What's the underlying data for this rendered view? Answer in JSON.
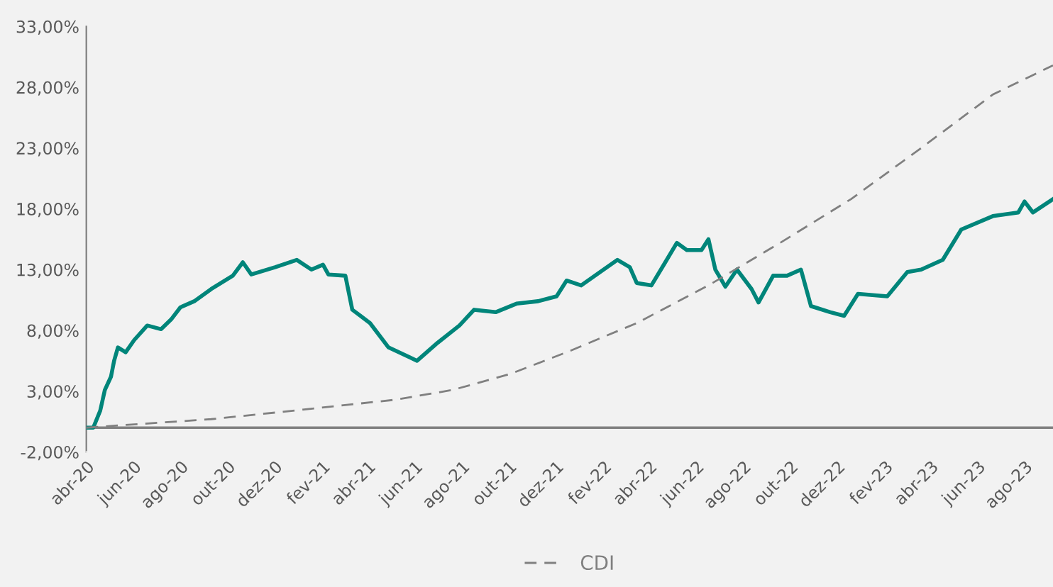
{
  "chart_data": {
    "type": "line",
    "xlim": [
      "2020-04-01",
      "2023-09-07"
    ],
    "ylim": [
      -2,
      33
    ],
    "yticks": [
      {
        "value": -2,
        "label": "-2,00%"
      },
      {
        "value": 3,
        "label": "3,00%"
      },
      {
        "value": 8,
        "label": "8,00%"
      },
      {
        "value": 13,
        "label": "13,00%"
      },
      {
        "value": 18,
        "label": "18,00%"
      },
      {
        "value": 23,
        "label": "23,00%"
      },
      {
        "value": 28,
        "label": "28,00%"
      },
      {
        "value": 33,
        "label": "33,00%"
      }
    ],
    "xticks": [
      {
        "value": "2020-04-01",
        "label": "abr-20"
      },
      {
        "value": "2020-06-01",
        "label": "jun-20"
      },
      {
        "value": "2020-08-01",
        "label": "ago-20"
      },
      {
        "value": "2020-10-01",
        "label": "out-20"
      },
      {
        "value": "2020-12-01",
        "label": "dez-20"
      },
      {
        "value": "2021-02-01",
        "label": "fev-21"
      },
      {
        "value": "2021-04-01",
        "label": "abr-21"
      },
      {
        "value": "2021-06-01",
        "label": "jun-21"
      },
      {
        "value": "2021-08-01",
        "label": "ago-21"
      },
      {
        "value": "2021-10-01",
        "label": "out-21"
      },
      {
        "value": "2021-12-01",
        "label": "dez-21"
      },
      {
        "value": "2022-02-01",
        "label": "fev-22"
      },
      {
        "value": "2022-04-01",
        "label": "abr-22"
      },
      {
        "value": "2022-06-01",
        "label": "jun-22"
      },
      {
        "value": "2022-08-01",
        "label": "ago-22"
      },
      {
        "value": "2022-10-01",
        "label": "out-22"
      },
      {
        "value": "2022-12-01",
        "label": "dez-22"
      },
      {
        "value": "2023-02-01",
        "label": "fev-23"
      },
      {
        "value": "2023-04-01",
        "label": "abr-23"
      },
      {
        "value": "2023-06-01",
        "label": "jun-23"
      },
      {
        "value": "2023-08-01",
        "label": "ago-23"
      }
    ],
    "grid": false,
    "legend": "bottom",
    "ref_lines": [
      {
        "axis": "y",
        "value": 0,
        "color": "#808080",
        "line_style": "solid"
      }
    ],
    "series": [
      {
        "color": "#00857a",
        "line_style": "solid",
        "x": [
          "2020-04-01",
          "2020-04-10",
          "2020-04-19",
          "2020-04-25",
          "2020-05-03",
          "2020-05-07",
          "2020-05-12",
          "2020-05-22",
          "2020-06-02",
          "2020-06-19",
          "2020-07-07",
          "2020-07-20",
          "2020-08-01",
          "2020-08-19",
          "2020-09-10",
          "2020-10-08",
          "2020-10-21",
          "2020-11-01",
          "2020-12-02",
          "2020-12-30",
          "2021-01-18",
          "2021-02-02",
          "2021-02-09",
          "2021-03-03",
          "2021-03-12",
          "2021-04-04",
          "2021-04-28",
          "2021-05-25",
          "2021-06-04",
          "2021-07-01",
          "2021-07-29",
          "2021-08-17",
          "2021-09-14",
          "2021-10-11",
          "2021-11-08",
          "2021-12-02",
          "2021-12-15",
          "2022-01-03",
          "2022-02-01",
          "2022-02-19",
          "2022-03-07",
          "2022-03-16",
          "2022-04-04",
          "2022-04-22",
          "2022-05-07",
          "2022-05-20",
          "2022-06-08",
          "2022-06-17",
          "2022-06-26",
          "2022-07-09",
          "2022-07-24",
          "2022-08-12",
          "2022-08-21",
          "2022-09-09",
          "2022-09-27",
          "2022-10-15",
          "2022-10-28",
          "2022-11-22",
          "2022-12-10",
          "2022-12-28",
          "2023-02-04",
          "2023-03-02",
          "2023-03-20",
          "2023-04-17",
          "2023-05-11",
          "2023-06-21",
          "2023-07-24",
          "2023-08-01",
          "2023-08-12",
          "2023-09-07"
        ],
        "values": [
          0,
          0,
          1.4,
          3.1,
          4.2,
          5.5,
          6.6,
          6.2,
          7.2,
          8.4,
          8.1,
          8.9,
          9.9,
          10.4,
          11.4,
          12.5,
          13.6,
          12.6,
          13.2,
          13.8,
          13.0,
          13.4,
          12.6,
          12.5,
          9.7,
          8.6,
          6.6,
          5.8,
          5.5,
          7.0,
          8.4,
          9.7,
          9.5,
          10.2,
          10.4,
          10.8,
          12.1,
          11.7,
          13.0,
          13.8,
          13.2,
          11.9,
          11.7,
          13.6,
          15.2,
          14.6,
          14.6,
          15.5,
          13.0,
          11.6,
          13.0,
          11.4,
          10.3,
          12.5,
          12.5,
          13.0,
          10.0,
          9.5,
          9.2,
          11.0,
          10.8,
          12.8,
          13.0,
          13.8,
          16.3,
          17.4,
          17.7,
          18.6,
          17.7,
          18.8
        ]
      },
      {
        "name": "CDI",
        "color": "#808080",
        "line_style": "dashed",
        "x": [
          "2020-04-01",
          "2020-09-10",
          "2020-12-11",
          "2021-05-07",
          "2021-07-20",
          "2021-10-02",
          "2021-12-15",
          "2022-03-16",
          "2022-06-17",
          "2022-09-18",
          "2022-12-19",
          "2023-03-20",
          "2023-06-21",
          "2023-09-07"
        ],
        "values": [
          0,
          0.7,
          1.3,
          2.3,
          3.1,
          4.4,
          6.2,
          8.6,
          11.7,
          15.2,
          18.8,
          23.0,
          27.4,
          29.8
        ]
      }
    ]
  }
}
